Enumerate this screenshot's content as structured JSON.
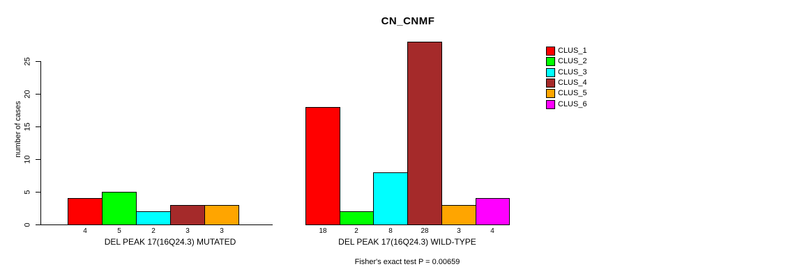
{
  "chart_data": {
    "type": "bar",
    "title": "CN_CNMF",
    "ylabel": "number of cases",
    "ylim": [
      0,
      25
    ],
    "yticks": [
      0,
      5,
      10,
      15,
      20,
      25
    ],
    "grid": false,
    "legend_position": "top-right",
    "legend_entries": [
      {
        "name": "CLUS_1",
        "color": "#FF0000"
      },
      {
        "name": "CLUS_2",
        "color": "#00FF00"
      },
      {
        "name": "CLUS_3",
        "color": "#00FFFF"
      },
      {
        "name": "CLUS_4",
        "color": "#A52A2A"
      },
      {
        "name": "CLUS_5",
        "color": "#FFA500"
      },
      {
        "name": "CLUS_6",
        "color": "#FF00FF"
      }
    ],
    "groups": [
      {
        "label": "DEL PEAK 17(16Q24.3) MUTATED",
        "series": [
          "CLUS_1",
          "CLUS_2",
          "CLUS_3",
          "CLUS_4",
          "CLUS_5",
          "CLUS_6"
        ],
        "values": [
          4,
          5,
          2,
          3,
          3,
          0
        ],
        "bar_labels": [
          "4",
          "5",
          "2",
          "3",
          "3",
          ""
        ]
      },
      {
        "label": "DEL PEAK 17(16Q24.3) WILD-TYPE",
        "series": [
          "CLUS_1",
          "CLUS_2",
          "CLUS_3",
          "CLUS_4",
          "CLUS_5",
          "CLUS_6"
        ],
        "values": [
          18,
          2,
          8,
          28,
          3,
          4
        ],
        "bar_labels": [
          "18",
          "2",
          "8",
          "28",
          "3",
          "4"
        ]
      }
    ],
    "annotation": "Fisher's exact test P = 0.00659"
  }
}
